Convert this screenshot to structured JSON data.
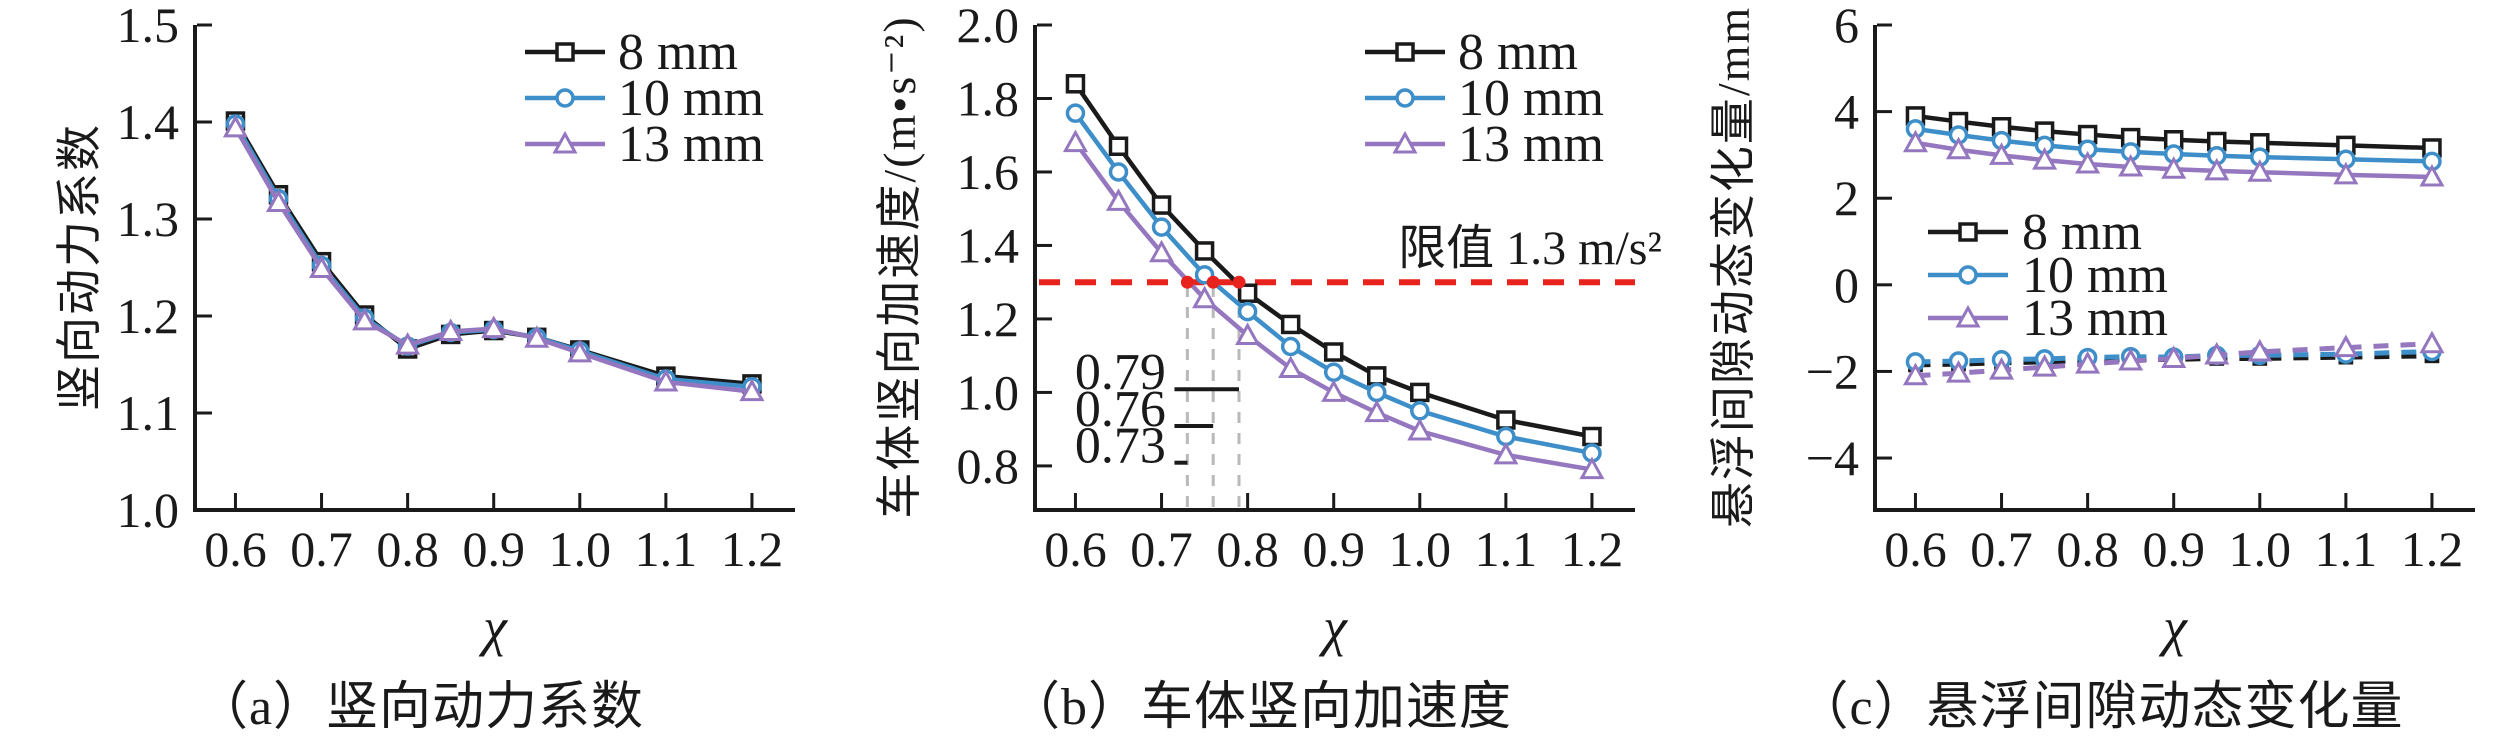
{
  "page": {
    "background": "#ffffff"
  },
  "colors": {
    "series8": "#1a1a1a",
    "series10": "#3d8ec9",
    "series13": "#9477bf",
    "limit": "#e8221c",
    "guide": "#b9b9b9",
    "axis": "#1a1a1a"
  },
  "figure": {
    "panels": [
      {
        "caption": "（a）竖向动力系数",
        "xlabel": "χ",
        "ylabel": "竖向动力系数"
      },
      {
        "caption": "（b）车体竖向加速度",
        "xlabel": "χ",
        "ylabel": "车体竖向加速度/(m•s⁻²)"
      },
      {
        "caption": "（c）悬浮间隙动态变化量",
        "xlabel": "χ",
        "ylabel": "悬浮间隙动态变化量/mm"
      }
    ]
  },
  "chart_data": [
    {
      "type": "line",
      "title": "（a）竖向动力系数",
      "xlabel": "χ",
      "ylabel": "竖向动力系数",
      "x": [
        0.6,
        0.65,
        0.7,
        0.75,
        0.8,
        0.85,
        0.9,
        0.95,
        1.0,
        1.1,
        1.2
      ],
      "series": [
        {
          "name": "8 mm",
          "marker": "square",
          "color_key": "series8",
          "dashed": false,
          "values": [
            1.401,
            1.325,
            1.256,
            1.201,
            1.166,
            1.181,
            1.185,
            1.178,
            1.165,
            1.138,
            1.13
          ]
        },
        {
          "name": "10 mm",
          "marker": "circle",
          "color_key": "series10",
          "dashed": false,
          "values": [
            1.398,
            1.321,
            1.252,
            1.198,
            1.169,
            1.183,
            1.186,
            1.178,
            1.164,
            1.135,
            1.127
          ]
        },
        {
          "name": "13 mm",
          "marker": "triangle",
          "color_key": "series13",
          "dashed": false,
          "values": [
            1.394,
            1.317,
            1.249,
            1.195,
            1.17,
            1.184,
            1.187,
            1.177,
            1.162,
            1.132,
            1.122
          ]
        }
      ],
      "xlim": [
        0.553,
        1.25
      ],
      "ylim": [
        1.0,
        1.5
      ],
      "xtick_values": [
        0.6,
        0.7,
        0.8,
        0.9,
        1.0,
        1.1,
        1.2
      ],
      "xtick_labels": [
        "0.6",
        "0.7",
        "0.8",
        "0.9",
        "1.0",
        "1.1",
        "1.2"
      ],
      "ytick_values": [
        1.0,
        1.1,
        1.2,
        1.3,
        1.4,
        1.5
      ],
      "ytick_labels": [
        "1.0",
        "1.1",
        "1.2",
        "1.3",
        "1.4",
        "1.5"
      ],
      "grid": false,
      "legend_pos": "top-right"
    },
    {
      "type": "line",
      "title": "（b）车体竖向加速度",
      "xlabel": "χ",
      "ylabel": "车体竖向加速度/(m•s⁻²)",
      "x": [
        0.6,
        0.65,
        0.7,
        0.75,
        0.8,
        0.85,
        0.9,
        0.95,
        1.0,
        1.1,
        1.2
      ],
      "series": [
        {
          "name": "8 mm",
          "marker": "square",
          "color_key": "series8",
          "dashed": false,
          "values": [
            1.84,
            1.67,
            1.51,
            1.385,
            1.27,
            1.185,
            1.11,
            1.045,
            1.0,
            0.925,
            0.88
          ]
        },
        {
          "name": "10 mm",
          "marker": "circle",
          "color_key": "series10",
          "dashed": false,
          "values": [
            1.76,
            1.6,
            1.45,
            1.32,
            1.22,
            1.125,
            1.055,
            1.0,
            0.95,
            0.88,
            0.835
          ]
        },
        {
          "name": "13 mm",
          "marker": "triangle",
          "color_key": "series13",
          "dashed": false,
          "values": [
            1.68,
            1.52,
            1.38,
            1.255,
            1.155,
            1.065,
            1.0,
            0.945,
            0.895,
            0.83,
            0.79
          ]
        }
      ],
      "xlim": [
        0.553,
        1.25
      ],
      "ylim": [
        0.68,
        2.0
      ],
      "xtick_values": [
        0.6,
        0.7,
        0.8,
        0.9,
        1.0,
        1.1,
        1.2
      ],
      "xtick_labels": [
        "0.6",
        "0.7",
        "0.8",
        "0.9",
        "1.0",
        "1.1",
        "1.2"
      ],
      "ytick_values": [
        0.8,
        1.0,
        1.2,
        1.4,
        1.6,
        1.8,
        2.0
      ],
      "ytick_labels": [
        "0.8",
        "1.0",
        "1.2",
        "1.4",
        "1.6",
        "1.8",
        "2.0"
      ],
      "grid": false,
      "legend_pos": "top-right",
      "limit_line": {
        "y": 1.3,
        "label": "限值 1.3 m/s²"
      },
      "crossings": [
        {
          "x": 0.79,
          "label": "0.79",
          "label_y": 1.055
        },
        {
          "x": 0.76,
          "label": "0.76",
          "label_y": 0.955
        },
        {
          "x": 0.73,
          "label": "0.73",
          "label_y": 0.855
        }
      ]
    },
    {
      "type": "line",
      "title": "（c）悬浮间隙动态变化量",
      "xlabel": "χ",
      "ylabel": "悬浮间隙动态变化量/mm",
      "x": [
        0.6,
        0.65,
        0.7,
        0.75,
        0.8,
        0.85,
        0.9,
        0.95,
        1.0,
        1.1,
        1.2
      ],
      "series": [
        {
          "name": "8 mm",
          "marker": "square",
          "color_key": "series8",
          "dashed": false,
          "values": [
            3.9,
            3.77,
            3.65,
            3.55,
            3.47,
            3.4,
            3.35,
            3.31,
            3.28,
            3.22,
            3.16
          ]
        },
        {
          "name": "10 mm",
          "marker": "circle",
          "color_key": "series10",
          "dashed": false,
          "values": [
            3.6,
            3.46,
            3.33,
            3.22,
            3.13,
            3.07,
            3.02,
            2.98,
            2.95,
            2.9,
            2.85
          ]
        },
        {
          "name": "13 mm",
          "marker": "triangle",
          "color_key": "series13",
          "dashed": false,
          "values": [
            3.28,
            3.12,
            2.99,
            2.88,
            2.79,
            2.72,
            2.67,
            2.63,
            2.6,
            2.54,
            2.49
          ]
        },
        {
          "name": "8 mm",
          "marker": "square",
          "color_key": "series8",
          "dashed": true,
          "solid_marker": true,
          "legend": false,
          "values": [
            -1.85,
            -1.83,
            -1.8,
            -1.78,
            -1.75,
            -1.73,
            -1.72,
            -1.7,
            -1.7,
            -1.67,
            -1.64
          ]
        },
        {
          "name": "10 mm",
          "marker": "circle",
          "color_key": "series10",
          "dashed": true,
          "legend": false,
          "values": [
            -1.78,
            -1.76,
            -1.73,
            -1.71,
            -1.68,
            -1.66,
            -1.67,
            -1.63,
            -1.63,
            -1.6,
            -1.54
          ]
        },
        {
          "name": "13 mm",
          "marker": "triangle",
          "color_key": "series13",
          "dashed": true,
          "legend": false,
          "values": [
            -2.1,
            -2.04,
            -1.97,
            -1.9,
            -1.83,
            -1.76,
            -1.7,
            -1.62,
            -1.55,
            -1.45,
            -1.36
          ]
        }
      ],
      "xlim": [
        0.553,
        1.25
      ],
      "ylim": [
        -5.2,
        6
      ],
      "xtick_values": [
        0.6,
        0.7,
        0.8,
        0.9,
        1.0,
        1.1,
        1.2
      ],
      "xtick_labels": [
        "0.6",
        "0.7",
        "0.8",
        "0.9",
        "1.0",
        "1.1",
        "1.2"
      ],
      "ytick_values": [
        -4,
        -2,
        0,
        2,
        4,
        6
      ],
      "ytick_labels": [
        "−4",
        "−2",
        "0",
        "2",
        "4",
        "6"
      ],
      "grid": false,
      "legend_pos": "mid-left"
    }
  ]
}
